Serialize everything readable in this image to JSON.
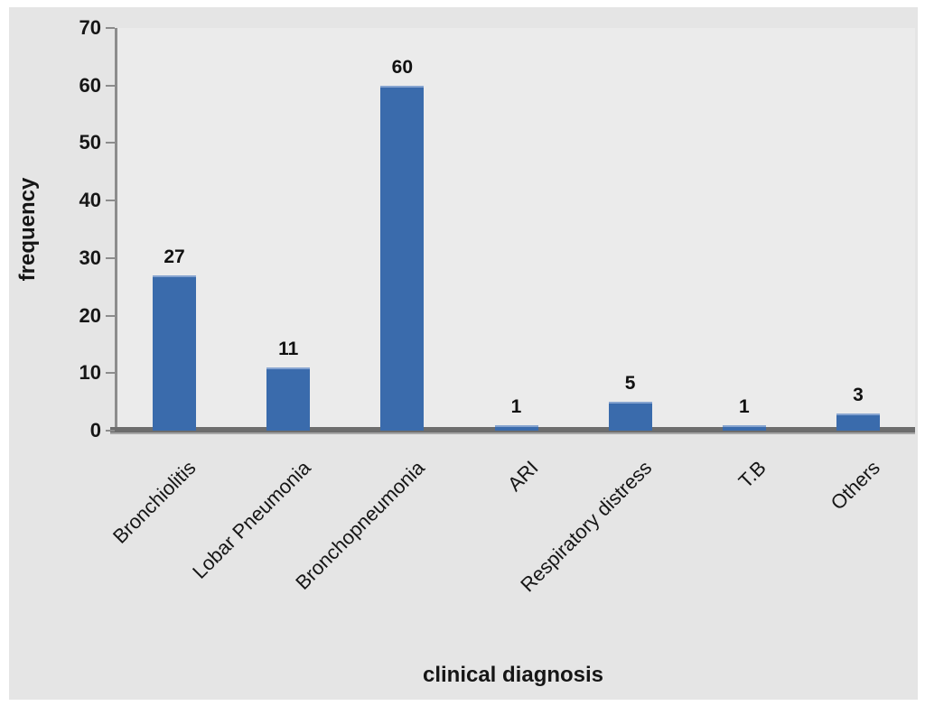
{
  "chart_data": {
    "type": "bar",
    "categories": [
      "Bronchiolitis",
      "Lobar Pneumonia",
      "Bronchopneumonia",
      "ARI",
      "Respiratory distress",
      "T.B",
      "Others"
    ],
    "values": [
      27,
      11,
      60,
      1,
      5,
      1,
      3
    ],
    "title": "",
    "xlabel": "clinical diagnosis",
    "ylabel": "frequency",
    "ylim": [
      0,
      70
    ],
    "yticks": [
      0,
      10,
      20,
      30,
      40,
      50,
      60,
      70
    ],
    "grid": "off",
    "legend": "none",
    "data_labels_shown": true,
    "bar_color": "#3a6bac",
    "panel_background": "#e5e5e5",
    "plot_background": "#ebebeb",
    "axis_color": "#8c8c8c",
    "x_axis_color": "#6d6d6d",
    "text_color": "#161616"
  }
}
